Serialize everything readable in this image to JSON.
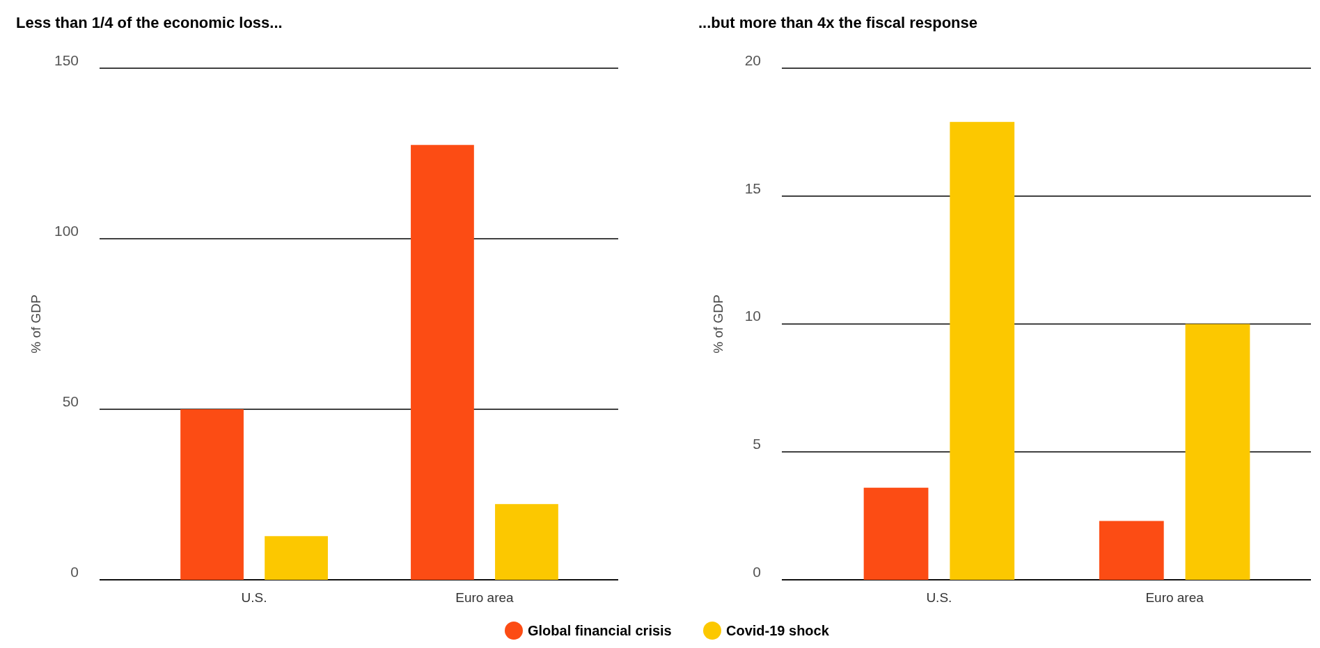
{
  "chart_data": [
    {
      "type": "bar",
      "title": "Less than 1/4 of the economic loss...",
      "ylabel": "% of GDP",
      "categories": [
        "U.S.",
        "Euro area"
      ],
      "series": [
        {
          "name": "Global financial crisis",
          "color": "#fc4c14",
          "values": [
            50,
            127.5
          ]
        },
        {
          "name": "Covid-19 shock",
          "color": "#fcc800",
          "values": [
            12.8,
            22.2
          ]
        }
      ],
      "ylim": [
        0,
        150
      ],
      "yticks": [
        0,
        50,
        100,
        150
      ],
      "grid": "y",
      "legend": "bottom"
    },
    {
      "type": "bar",
      "title": "...but more than 4x the fiscal response",
      "ylabel": "% of GDP",
      "categories": [
        "U.S.",
        "Euro area"
      ],
      "series": [
        {
          "color": "#fc4c14",
          "values": [
            3.6,
            2.3
          ]
        },
        {
          "color": "#fcc800",
          "values": [
            17.9,
            10
          ]
        }
      ],
      "ylim": [
        0,
        20
      ],
      "yticks": [
        0,
        5,
        10,
        15,
        20
      ],
      "grid": "y"
    }
  ]
}
